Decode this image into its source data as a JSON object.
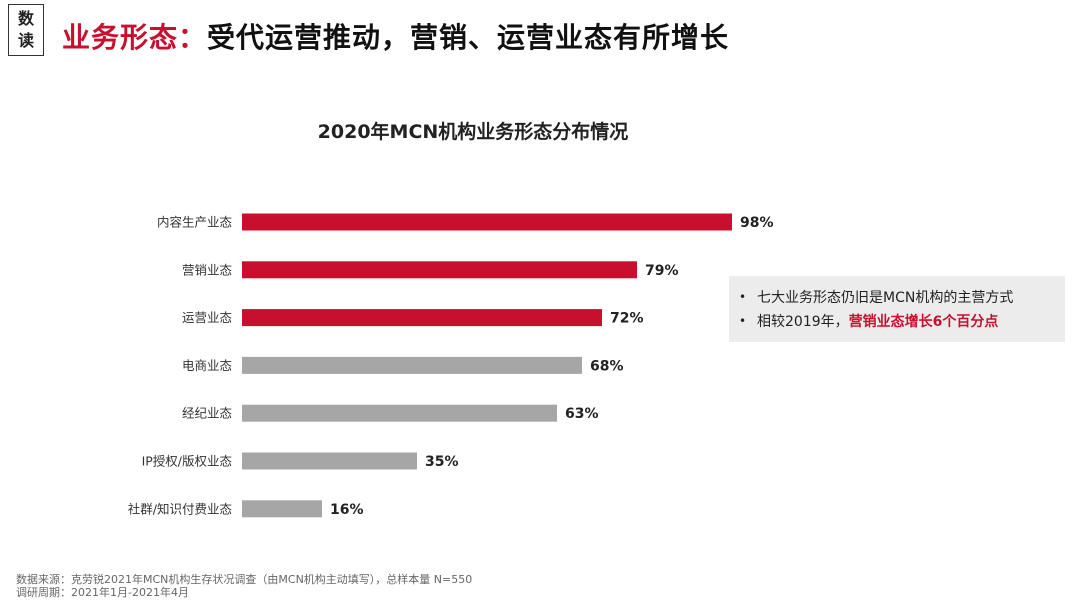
{
  "tag": {
    "line1": "数",
    "line2": "读"
  },
  "headline": {
    "prefix": "业务形态：",
    "main": "受代运营推动，营销、运营业态有所增长"
  },
  "colors": {
    "accent": "#c8102e",
    "gray": "#a6a6a6"
  },
  "chart_data": {
    "type": "bar",
    "orientation": "horizontal",
    "title": "2020年MCN机构业务形态分布情况",
    "categories": [
      "内容生产业态",
      "营销业态",
      "运营业态",
      "电商业态",
      "经纪业态",
      "IP授权/版权业态",
      "社群/知识付费业态"
    ],
    "values": [
      98,
      79,
      72,
      68,
      63,
      35,
      16
    ],
    "value_labels": [
      "98%",
      "79%",
      "72%",
      "68%",
      "63%",
      "35%",
      "16%"
    ],
    "unit": "%",
    "bar_colors": [
      "#c8102e",
      "#c8102e",
      "#c8102e",
      "#a6a6a6",
      "#a6a6a6",
      "#a6a6a6",
      "#a6a6a6"
    ],
    "xlim": [
      0,
      100
    ],
    "grid": false,
    "legend": false
  },
  "note": {
    "bullet1": "七大业务形态仍旧是MCN机构的主营方式",
    "bullet2_prefix": "相较2019年，",
    "bullet2_highlight": "营销业态增长6个百分点",
    "bullet_symbol": "•"
  },
  "source": {
    "line1": "数据来源：克劳锐2021年MCN机构生存状况调查（由MCN机构主动填写），总样本量 N=550",
    "line2": "调研周期：2021年1月-2021年4月"
  }
}
